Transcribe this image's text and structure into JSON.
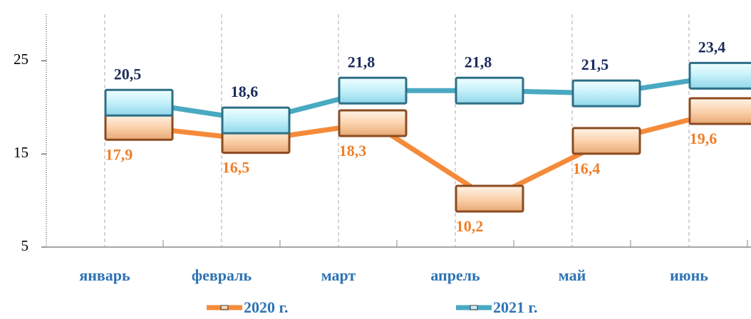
{
  "chart_data": {
    "type": "line",
    "categories": [
      "январь",
      "февраль",
      "март",
      "апрель",
      "май",
      "июнь"
    ],
    "series": [
      {
        "name": "2020 г.",
        "color": "#f58b3a",
        "label_color": "#f07f28",
        "values": [
          17.9,
          16.5,
          18.3,
          10.2,
          16.4,
          19.6
        ],
        "value_labels": [
          "17,9",
          "16,5",
          "18,3",
          "10,2",
          "16,4",
          "19,6"
        ]
      },
      {
        "name": "2021 г.",
        "color": "#4aa9c2",
        "label_color": "#1c2c5c",
        "values": [
          20.5,
          18.6,
          21.8,
          21.8,
          21.5,
          23.4
        ],
        "value_labels": [
          "20,5",
          "18,6",
          "21,8",
          "21,8",
          "21,5",
          "23,4"
        ]
      }
    ],
    "ylim": [
      5,
      30
    ],
    "yticks": [
      5,
      15,
      25
    ],
    "grid": true
  }
}
